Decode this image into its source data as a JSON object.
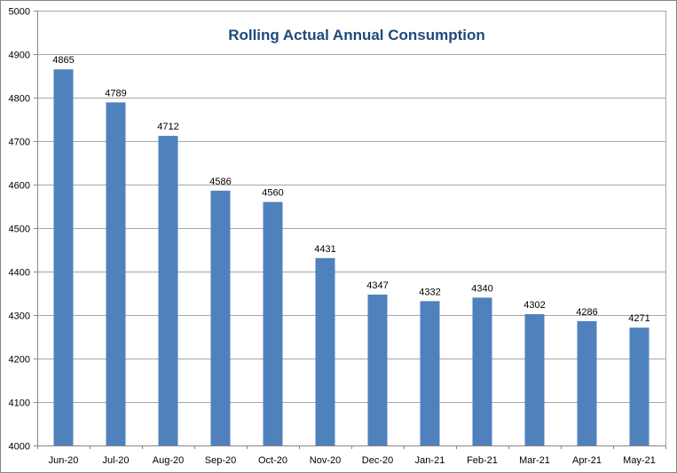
{
  "chart_data": {
    "type": "bar",
    "title": "Rolling Actual Annual Consumption",
    "xlabel": "",
    "ylabel": "",
    "categories": [
      "Jun-20",
      "Jul-20",
      "Aug-20",
      "Sep-20",
      "Oct-20",
      "Nov-20",
      "Dec-20",
      "Jan-21",
      "Feb-21",
      "Mar-21",
      "Apr-21",
      "May-21"
    ],
    "values": [
      4865,
      4789,
      4712,
      4586,
      4560,
      4431,
      4347,
      4332,
      4340,
      4302,
      4286,
      4271
    ],
    "ylim": [
      4000,
      5000
    ],
    "yticks": [
      4000,
      4100,
      4200,
      4300,
      4400,
      4500,
      4600,
      4700,
      4800,
      4900,
      5000
    ],
    "grid": true,
    "legend": "none"
  },
  "colors": {
    "bar": "#4F81BD",
    "title": "#1F497D",
    "grid": "#A6A6A6",
    "axis": "#868686",
    "border": "#868686"
  }
}
